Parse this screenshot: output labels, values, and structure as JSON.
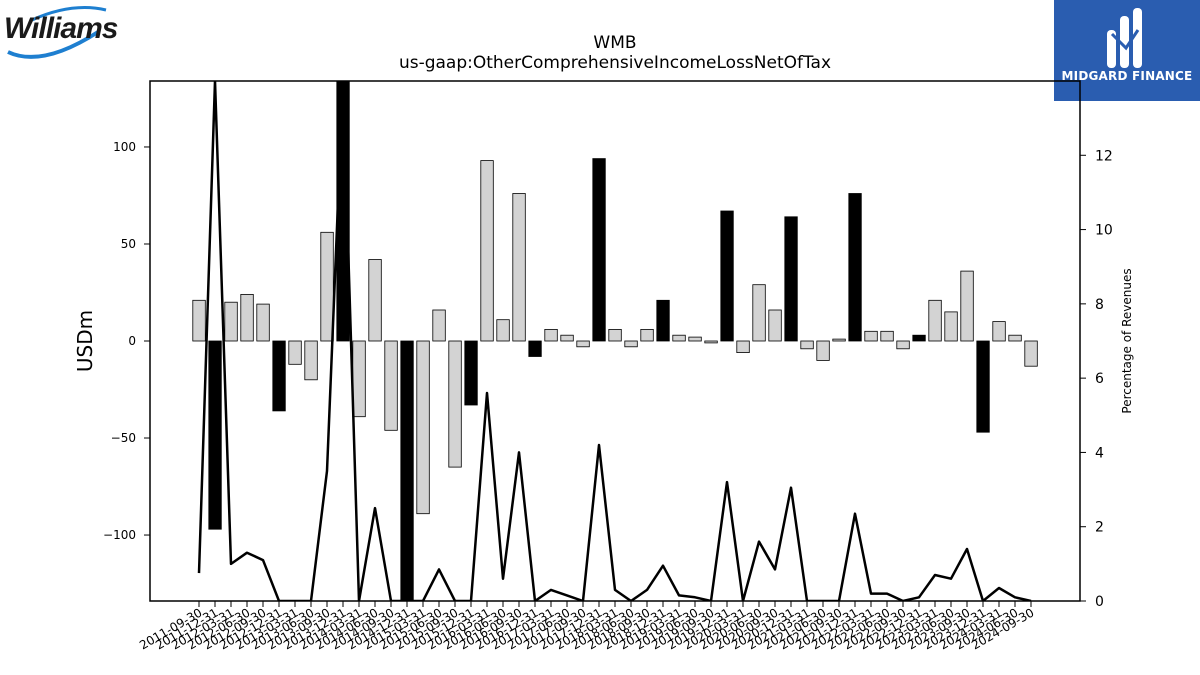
{
  "logos": {
    "left_text": "Williams",
    "right_text": "MIDGARD FINANCE"
  },
  "colors": {
    "bar_positive": "#d3d3d3",
    "bar_negative": "#000000",
    "line": "#000000",
    "brand_blue": "#2a5db0",
    "williams_blue": "#1e7fd0"
  },
  "chart_data": {
    "type": "bar",
    "title": "WMB",
    "subtitle": "us-gaap:OtherComprehensiveIncomeLossNetOfTax",
    "ylabel": "USDm",
    "y2label": "Percentage of Revenues",
    "ylim": [
      -134,
      134
    ],
    "y2lim": [
      0,
      14
    ],
    "yticks": [
      -100,
      -50,
      0,
      50,
      100
    ],
    "y2ticks": [
      0,
      2,
      4,
      6,
      8,
      10,
      12
    ],
    "grid": false,
    "categories": [
      "2011-09-30",
      "2011-12-31",
      "2012-03-31",
      "2012-06-30",
      "2012-09-30",
      "2012-12-31",
      "2013-03-31",
      "2013-06-30",
      "2013-09-30",
      "2013-12-31",
      "2014-03-31",
      "2014-06-30",
      "2014-09-30",
      "2014-12-31",
      "2015-03-31",
      "2015-06-30",
      "2015-09-30",
      "2015-12-31",
      "2016-03-31",
      "2016-06-30",
      "2016-09-30",
      "2016-12-31",
      "2017-03-31",
      "2017-06-30",
      "2017-09-30",
      "2017-12-31",
      "2018-03-31",
      "2018-06-30",
      "2018-09-30",
      "2018-12-31",
      "2019-03-31",
      "2019-06-30",
      "2019-09-30",
      "2019-12-31",
      "2020-03-31",
      "2020-06-30",
      "2020-09-30",
      "2020-12-31",
      "2021-03-31",
      "2021-06-30",
      "2021-09-30",
      "2021-12-31",
      "2022-03-31",
      "2022-06-30",
      "2022-09-30",
      "2022-12-31",
      "2023-03-31",
      "2023-06-30",
      "2023-09-30",
      "2023-12-31",
      "2024-03-31",
      "2024-06-30",
      "2024-09-30"
    ],
    "series": [
      {
        "type": "bar",
        "values": [
          21,
          -97,
          20,
          24,
          19,
          -36,
          -12,
          -20,
          56,
          134,
          -39,
          42,
          -46,
          -134,
          -89,
          16,
          -65,
          -33,
          93,
          11,
          76,
          -8,
          6,
          3,
          -3,
          94,
          6,
          -3,
          6,
          21,
          3,
          2,
          -1,
          67,
          -6,
          29,
          16,
          64,
          -4,
          -10,
          1,
          76,
          5,
          5,
          -4,
          3,
          21,
          15,
          36,
          -47,
          10,
          3,
          -13
        ],
        "dark": [
          false,
          true,
          false,
          false,
          false,
          true,
          false,
          false,
          false,
          true,
          false,
          false,
          false,
          true,
          false,
          false,
          false,
          true,
          false,
          false,
          false,
          true,
          false,
          false,
          false,
          true,
          false,
          false,
          false,
          true,
          false,
          false,
          false,
          true,
          false,
          false,
          false,
          true,
          false,
          false,
          false,
          true,
          false,
          false,
          false,
          true,
          false,
          false,
          false,
          true,
          false,
          false,
          false
        ]
      },
      {
        "type": "line",
        "axis": "right",
        "values": [
          0.75,
          14,
          1.0,
          1.3,
          1.1,
          0,
          0,
          0,
          3.5,
          14,
          0,
          2.5,
          0,
          0,
          0,
          0.85,
          0,
          0,
          5.6,
          0.6,
          4.0,
          0,
          0.3,
          0.15,
          0,
          4.2,
          0.3,
          0,
          0.3,
          0.95,
          0.15,
          0.1,
          0,
          3.2,
          0,
          1.6,
          0.85,
          3.05,
          0,
          0,
          0,
          2.35,
          0.2,
          0.2,
          0,
          0.1,
          0.7,
          0.6,
          1.4,
          0,
          0.35,
          0.1,
          0
        ]
      }
    ]
  }
}
